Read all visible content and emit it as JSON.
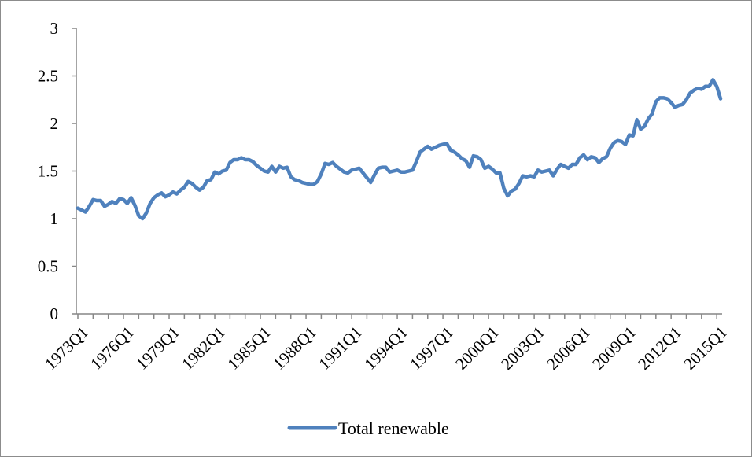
{
  "chart_data": {
    "type": "line",
    "title": "",
    "xlabel": "",
    "ylabel": "",
    "ylim": [
      0,
      3
    ],
    "y_ticks": [
      0,
      0.5,
      1,
      1.5,
      2,
      2.5,
      3
    ],
    "y_tick_labels": [
      "0",
      "0.5",
      "1",
      "1.5",
      "2",
      "2.5",
      "3"
    ],
    "x_start": "1973Q1",
    "x_end": "2015Q3",
    "x_tick_labels": [
      "1973Q1",
      "1976Q1",
      "1979Q1",
      "1982Q1",
      "1985Q1",
      "1988Q1",
      "1991Q1",
      "1994Q1",
      "1997Q1",
      "2000Q1",
      "2003Q1",
      "2006Q1",
      "2009Q1",
      "2012Q1",
      "2015Q1"
    ],
    "grid": false,
    "legend_position": "bottom",
    "series": [
      {
        "name": "Total renewable",
        "color": "#4f81bd",
        "values": [
          1.11,
          1.09,
          1.07,
          1.13,
          1.2,
          1.19,
          1.19,
          1.13,
          1.15,
          1.18,
          1.16,
          1.21,
          1.2,
          1.16,
          1.22,
          1.14,
          1.03,
          1.0,
          1.06,
          1.16,
          1.22,
          1.25,
          1.27,
          1.23,
          1.25,
          1.28,
          1.26,
          1.3,
          1.33,
          1.39,
          1.37,
          1.33,
          1.3,
          1.33,
          1.4,
          1.41,
          1.49,
          1.47,
          1.5,
          1.51,
          1.59,
          1.62,
          1.62,
          1.64,
          1.62,
          1.62,
          1.6,
          1.56,
          1.53,
          1.5,
          1.49,
          1.55,
          1.49,
          1.55,
          1.53,
          1.54,
          1.44,
          1.41,
          1.4,
          1.38,
          1.37,
          1.36,
          1.36,
          1.39,
          1.47,
          1.58,
          1.57,
          1.59,
          1.55,
          1.52,
          1.49,
          1.48,
          1.51,
          1.52,
          1.53,
          1.48,
          1.43,
          1.38,
          1.46,
          1.53,
          1.54,
          1.54,
          1.49,
          1.5,
          1.51,
          1.49,
          1.49,
          1.5,
          1.51,
          1.6,
          1.7,
          1.73,
          1.76,
          1.73,
          1.75,
          1.77,
          1.78,
          1.79,
          1.72,
          1.7,
          1.67,
          1.63,
          1.61,
          1.54,
          1.66,
          1.65,
          1.62,
          1.53,
          1.55,
          1.52,
          1.48,
          1.48,
          1.32,
          1.24,
          1.29,
          1.31,
          1.37,
          1.45,
          1.44,
          1.45,
          1.44,
          1.51,
          1.49,
          1.5,
          1.51,
          1.45,
          1.52,
          1.57,
          1.55,
          1.53,
          1.57,
          1.57,
          1.64,
          1.67,
          1.62,
          1.65,
          1.64,
          1.59,
          1.63,
          1.65,
          1.74,
          1.8,
          1.82,
          1.81,
          1.78,
          1.88,
          1.87,
          2.04,
          1.94,
          1.97,
          2.05,
          2.1,
          2.23,
          2.27,
          2.27,
          2.26,
          2.22,
          2.17,
          2.19,
          2.2,
          2.25,
          2.32,
          2.35,
          2.37,
          2.36,
          2.39,
          2.39,
          2.46,
          2.39,
          2.26
        ]
      }
    ]
  }
}
